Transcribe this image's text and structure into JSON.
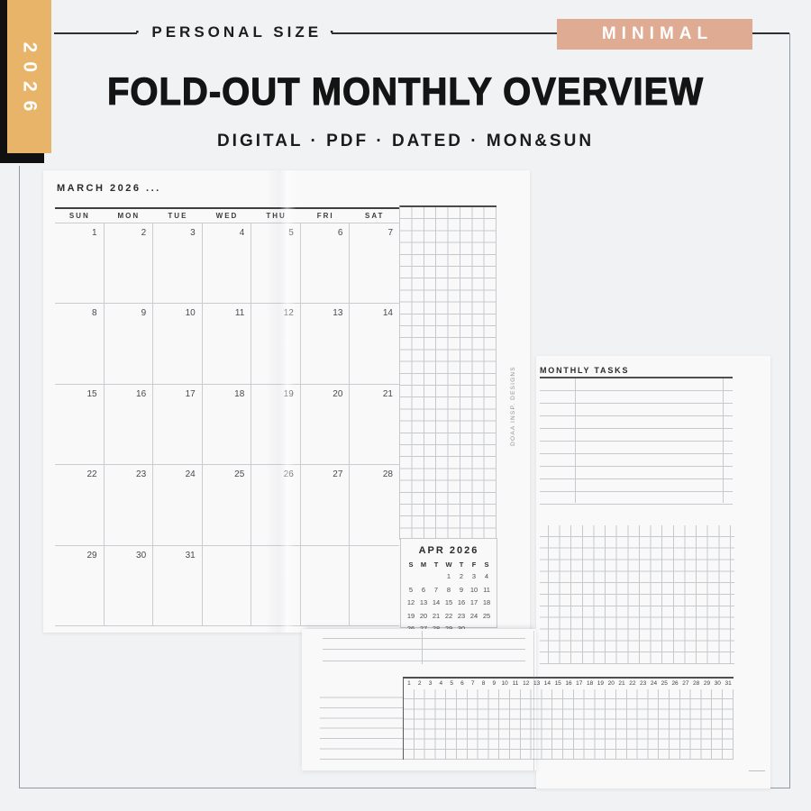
{
  "header": {
    "year_tab": "2026",
    "size_label": "· PERSONAL SIZE ·",
    "style_badge": "MINIMAL",
    "title": "FOLD-OUT MONTHLY OVERVIEW",
    "subtitle": "DIGITAL · PDF · DATED · MON&SUN",
    "colors": {
      "tab_bg": "#e8b469",
      "badge_bg": "#dfab93"
    }
  },
  "calendar": {
    "title": "MARCH 2026 ...",
    "day_headers": [
      "SUN",
      "MON",
      "TUE",
      "WED",
      "THU",
      "FRI",
      "SAT"
    ],
    "weeks": [
      [
        "1",
        "2",
        "3",
        "4",
        "5",
        "6",
        "7"
      ],
      [
        "8",
        "9",
        "10",
        "11",
        "12",
        "13",
        "14"
      ],
      [
        "15",
        "16",
        "17",
        "18",
        "19",
        "20",
        "21"
      ],
      [
        "22",
        "23",
        "24",
        "25",
        "26",
        "27",
        "28"
      ],
      [
        "29",
        "30",
        "31",
        "",
        "",
        "",
        ""
      ]
    ]
  },
  "mini_calendar": {
    "title": "APR 2026",
    "day_headers": [
      "S",
      "M",
      "T",
      "W",
      "T",
      "F",
      "S"
    ],
    "weeks": [
      [
        "",
        "",
        "",
        "1",
        "2",
        "3",
        "4"
      ],
      [
        "5",
        "6",
        "7",
        "8",
        "9",
        "10",
        "11"
      ],
      [
        "12",
        "13",
        "14",
        "15",
        "16",
        "17",
        "18"
      ],
      [
        "19",
        "20",
        "21",
        "22",
        "23",
        "24",
        "25"
      ],
      [
        "26",
        "27",
        "28",
        "29",
        "30",
        "",
        ""
      ]
    ]
  },
  "side_text": "DOAA INSP. DESIGNS",
  "tasks_page": {
    "title": "MONTHLY TASKS"
  },
  "tracker": {
    "days": [
      "1",
      "2",
      "3",
      "4",
      "5",
      "6",
      "7",
      "8",
      "9",
      "10",
      "11",
      "12",
      "13",
      "14",
      "15",
      "16",
      "17",
      "18",
      "19",
      "20",
      "21",
      "22",
      "23",
      "24",
      "25",
      "26",
      "27",
      "28",
      "29",
      "30",
      "31"
    ]
  }
}
